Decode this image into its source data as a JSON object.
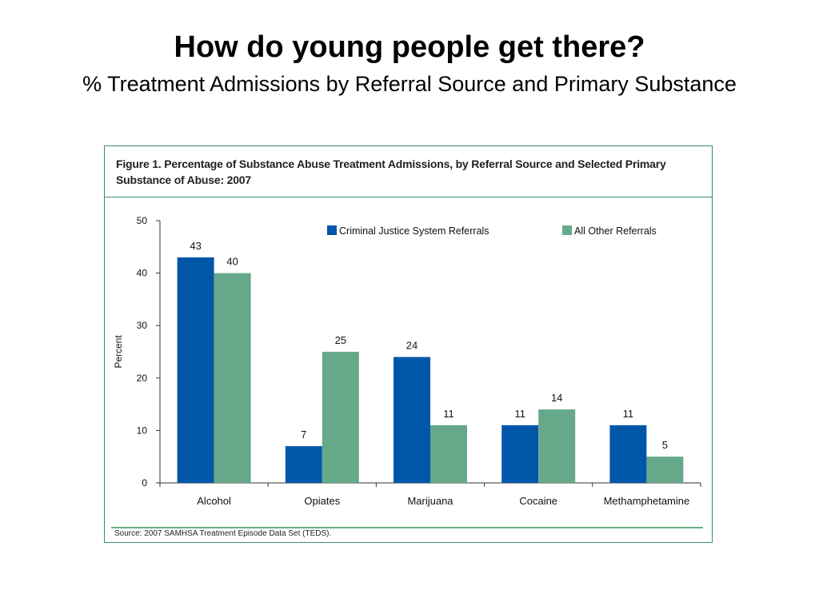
{
  "slide": {
    "title": "How do young people get there?",
    "subtitle": "% Treatment Admissions by Referral Source and Primary Substance"
  },
  "figure": {
    "caption": "Figure 1. Percentage of Substance Abuse Treatment Admissions, by Referral Source and Selected Primary Substance of Abuse: 2007",
    "source": "Source: 2007 SAMHSA Treatment Episode Data Set (TEDS)."
  },
  "colors": {
    "series1": "#0057a8",
    "series2": "#66a98a",
    "frame": "#3c8f5c"
  },
  "chart_data": {
    "type": "bar",
    "categories": [
      "Alcohol",
      "Opiates",
      "Marijuana",
      "Cocaine",
      "Methamphetamine"
    ],
    "series": [
      {
        "name": "Criminal Justice System Referrals",
        "values": [
          43,
          7,
          24,
          11,
          11
        ]
      },
      {
        "name": "All Other Referrals",
        "values": [
          40,
          25,
          11,
          14,
          5
        ]
      }
    ],
    "title": "",
    "xlabel": "",
    "ylabel": "Percent",
    "ylim": [
      0,
      50
    ],
    "yticks": [
      0,
      10,
      20,
      30,
      40,
      50
    ],
    "legend_position": "top-right",
    "grid": false
  }
}
